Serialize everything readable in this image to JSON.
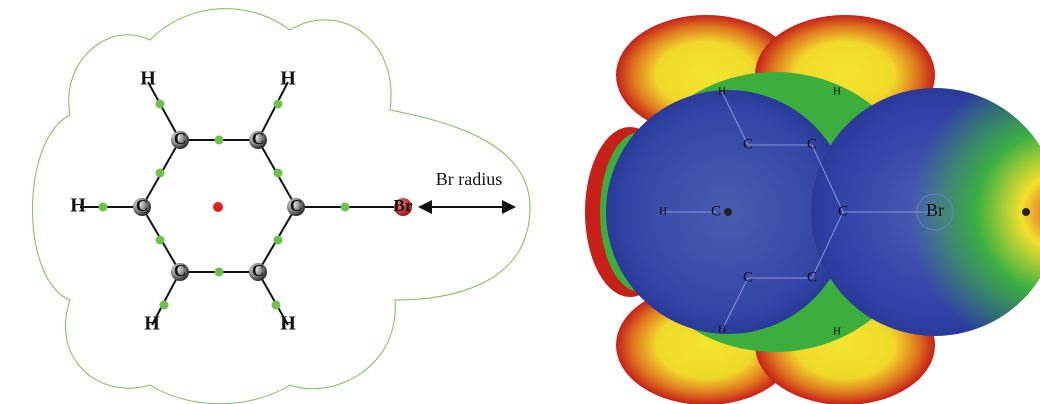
{
  "left": {
    "atoms": [
      "H",
      "H",
      "C",
      "C",
      "H",
      "C",
      "C",
      "Br",
      "C",
      "C",
      "H",
      "H"
    ],
    "annotation": "Br radius"
  },
  "right": {
    "labels": [
      "H",
      "H",
      "C",
      "C",
      "H",
      "C",
      "C",
      "Br",
      "C",
      "C",
      "H",
      "H"
    ]
  }
}
